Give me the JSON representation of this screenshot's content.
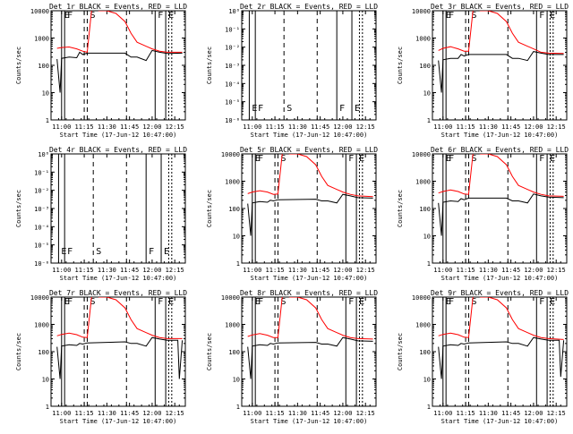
{
  "figure": {
    "shared_x_ticks": [
      "11:00",
      "11:15",
      "11:30",
      "11:45",
      "12:00",
      "12:15"
    ],
    "shared_xlabel": "Start Time (17-Jun-12 10:47:00)",
    "shared_ylabel": "Counts/sec",
    "line_colors": {
      "events": "#000000",
      "lld": "#ff0000"
    }
  },
  "chart_data": [
    {
      "type": "line",
      "title": "Det 1r BLACK = Events, RED = LLD",
      "xlabel": "Start Time (17-Jun-12 10:47:00)",
      "ylabel": "Counts/sec",
      "x_ticks": [
        "11:00",
        "11:15",
        "11:30",
        "11:45",
        "12:00",
        "12:15"
      ],
      "y_ticks": [
        "1",
        "10",
        "100",
        "1000",
        "10000"
      ],
      "yscale": "log",
      "ylim": [
        1,
        10000
      ],
      "markers": [
        {
          "label": "E",
          "x": "11:00"
        },
        {
          "label": "F",
          "x": "11:02"
        },
        {
          "label": "S",
          "x": "11:17"
        },
        {
          "label": "F",
          "x": "12:02"
        },
        {
          "label": "E",
          "x": "12:09"
        }
      ],
      "series": [
        {
          "color": "#ff0000",
          "x": [
            "10:57",
            "11:00",
            "11:05",
            "11:10",
            "11:14",
            "11:17",
            "11:20",
            "11:25",
            "11:30",
            "11:36",
            "11:42",
            "11:46",
            "11:50",
            "11:56",
            "12:00",
            "12:05",
            "12:10",
            "12:20"
          ],
          "y": [
            420,
            450,
            470,
            400,
            330,
            300,
            12000,
            10000,
            10000,
            8000,
            4000,
            1500,
            700,
            500,
            400,
            330,
            300,
            300
          ]
        },
        {
          "color": "#000000",
          "x": [
            "10:57",
            "10:59",
            "11:00",
            "11:05",
            "11:10",
            "11:12",
            "11:14",
            "11:17",
            "11:42",
            "11:46",
            "11:50",
            "11:56",
            "12:00",
            "12:05",
            "12:10",
            "12:20"
          ],
          "y": [
            170,
            10,
            180,
            200,
            190,
            300,
            250,
            280,
            280,
            200,
            200,
            150,
            350,
            300,
            270,
            280
          ]
        }
      ]
    },
    {
      "type": "line",
      "title": "Det 2r BLACK = Events, RED = LLD",
      "xlabel": "Start Time (17-Jun-12 10:47:00)",
      "ylabel": "Counts/sec",
      "x_ticks": [
        "11:00",
        "11:15",
        "11:30",
        "11:45",
        "12:00",
        "12:15"
      ],
      "y_ticks": [
        "10⁰",
        "10⁻¹",
        "10⁻²",
        "10⁻³",
        "10⁻⁴",
        "10⁻⁵",
        "10⁻⁶"
      ],
      "yscale": "log",
      "ylim": [
        1e-06,
        1
      ],
      "no_data": true,
      "markers": [
        {
          "label": "E",
          "x": "10:58"
        },
        {
          "label": "F",
          "x": "11:02"
        },
        {
          "label": "S",
          "x": "11:21"
        },
        {
          "label": "F",
          "x": "11:56"
        },
        {
          "label": "E",
          "x": "12:06"
        }
      ],
      "series": []
    },
    {
      "type": "line",
      "title": "Det 3r BLACK = Events, RED = LLD",
      "xlabel": "Start Time (17-Jun-12 10:47:00)",
      "ylabel": "Counts/sec",
      "x_ticks": [
        "11:00",
        "11:15",
        "11:30",
        "11:45",
        "12:00",
        "12:15"
      ],
      "y_ticks": [
        "1",
        "10",
        "100",
        "1000",
        "10000"
      ],
      "yscale": "log",
      "ylim": [
        1,
        10000
      ],
      "markers": [
        {
          "label": "E",
          "x": "11:00"
        },
        {
          "label": "F",
          "x": "11:02"
        },
        {
          "label": "S",
          "x": "11:17"
        },
        {
          "label": "F",
          "x": "12:02"
        },
        {
          "label": "E",
          "x": "12:09"
        }
      ],
      "series": [
        {
          "color": "#ff0000",
          "x": [
            "10:57",
            "11:00",
            "11:05",
            "11:10",
            "11:14",
            "11:17",
            "11:20",
            "11:25",
            "11:30",
            "11:36",
            "11:42",
            "11:46",
            "11:50",
            "11:56",
            "12:00",
            "12:05",
            "12:10",
            "12:20"
          ],
          "y": [
            350,
            420,
            480,
            400,
            330,
            330,
            12000,
            10000,
            10000,
            8000,
            4000,
            1500,
            700,
            500,
            400,
            300,
            280,
            270
          ]
        },
        {
          "color": "#000000",
          "x": [
            "10:57",
            "10:59",
            "11:00",
            "11:05",
            "11:10",
            "11:12",
            "11:14",
            "11:17",
            "11:42",
            "11:46",
            "11:50",
            "11:56",
            "12:00",
            "12:05",
            "12:10",
            "12:20"
          ],
          "y": [
            150,
            10,
            160,
            180,
            180,
            250,
            220,
            250,
            250,
            180,
            180,
            150,
            320,
            280,
            250,
            250
          ]
        }
      ]
    },
    {
      "type": "line",
      "title": "Det 4r BLACK = Events, RED = LLD",
      "xlabel": "Start Time (17-Jun-12 10:47:00)",
      "ylabel": "Counts/sec",
      "x_ticks": [
        "11:00",
        "11:15",
        "11:30",
        "11:45",
        "12:00",
        "12:15"
      ],
      "y_ticks": [
        "10⁰",
        "10⁻¹",
        "10⁻²",
        "10⁻³",
        "10⁻⁴",
        "10⁻⁵",
        "10⁻⁶"
      ],
      "yscale": "log",
      "ylim": [
        1e-06,
        1
      ],
      "no_data": true,
      "markers": [
        {
          "label": "E",
          "x": "10:58"
        },
        {
          "label": "F",
          "x": "11:02"
        },
        {
          "label": "S",
          "x": "11:21"
        },
        {
          "label": "F",
          "x": "11:56"
        },
        {
          "label": "E",
          "x": "12:06"
        }
      ],
      "series": []
    },
    {
      "type": "line",
      "title": "Det 5r BLACK = Events, RED = LLD",
      "xlabel": "Start Time (17-Jun-12 10:47:00)",
      "ylabel": "Counts/sec",
      "x_ticks": [
        "11:00",
        "11:15",
        "11:30",
        "11:45",
        "12:00",
        "12:15"
      ],
      "y_ticks": [
        "1",
        "10",
        "100",
        "1000",
        "10000"
      ],
      "yscale": "log",
      "ylim": [
        1,
        10000
      ],
      "markers": [
        {
          "label": "E",
          "x": "11:00"
        },
        {
          "label": "F",
          "x": "11:02"
        },
        {
          "label": "S",
          "x": "11:17"
        },
        {
          "label": "F",
          "x": "12:02"
        },
        {
          "label": "E",
          "x": "12:09"
        }
      ],
      "series": [
        {
          "color": "#ff0000",
          "x": [
            "10:57",
            "11:00",
            "11:05",
            "11:10",
            "11:14",
            "11:17",
            "11:20",
            "11:25",
            "11:30",
            "11:36",
            "11:42",
            "11:46",
            "11:50",
            "11:56",
            "12:00",
            "12:05",
            "12:10",
            "12:20"
          ],
          "y": [
            350,
            400,
            450,
            400,
            330,
            340,
            12000,
            10000,
            10000,
            8000,
            4000,
            1500,
            700,
            500,
            400,
            330,
            290,
            270
          ]
        },
        {
          "color": "#000000",
          "x": [
            "10:57",
            "10:59",
            "11:00",
            "11:05",
            "11:10",
            "11:12",
            "11:14",
            "11:17",
            "11:42",
            "11:46",
            "11:50",
            "11:56",
            "12:00",
            "12:05",
            "12:10",
            "12:20"
          ],
          "y": [
            150,
            10,
            160,
            180,
            170,
            200,
            190,
            210,
            220,
            190,
            190,
            160,
            330,
            290,
            250,
            240
          ]
        }
      ]
    },
    {
      "type": "line",
      "title": "Det 6r BLACK = Events, RED = LLD",
      "xlabel": "Start Time (17-Jun-12 10:47:00)",
      "ylabel": "Counts/sec",
      "x_ticks": [
        "11:00",
        "11:15",
        "11:30",
        "11:45",
        "12:00",
        "12:15"
      ],
      "y_ticks": [
        "1",
        "10",
        "100",
        "1000",
        "10000"
      ],
      "yscale": "log",
      "ylim": [
        1,
        10000
      ],
      "markers": [
        {
          "label": "E",
          "x": "11:00"
        },
        {
          "label": "F",
          "x": "11:02"
        },
        {
          "label": "S",
          "x": "11:17"
        },
        {
          "label": "F",
          "x": "12:02"
        },
        {
          "label": "E",
          "x": "12:09"
        }
      ],
      "series": [
        {
          "color": "#ff0000",
          "x": [
            "10:57",
            "11:00",
            "11:05",
            "11:10",
            "11:14",
            "11:17",
            "11:20",
            "11:25",
            "11:30",
            "11:36",
            "11:42",
            "11:46",
            "11:50",
            "11:56",
            "12:00",
            "12:05",
            "12:10",
            "12:20"
          ],
          "y": [
            370,
            420,
            480,
            420,
            340,
            330,
            12000,
            10000,
            10000,
            8000,
            4000,
            1500,
            700,
            500,
            400,
            330,
            290,
            280
          ]
        },
        {
          "color": "#000000",
          "x": [
            "10:57",
            "10:59",
            "11:00",
            "11:05",
            "11:10",
            "11:12",
            "11:14",
            "11:17",
            "11:42",
            "11:46",
            "11:50",
            "11:56",
            "12:00",
            "12:05",
            "12:10",
            "12:20"
          ],
          "y": [
            160,
            10,
            170,
            190,
            180,
            230,
            210,
            240,
            240,
            190,
            190,
            160,
            340,
            290,
            260,
            250
          ]
        }
      ]
    },
    {
      "type": "line",
      "title": "Det 7r BLACK = Events, RED = LLD",
      "xlabel": "Start Time (17-Jun-12 10:47:00)",
      "ylabel": "Counts/sec",
      "x_ticks": [
        "11:00",
        "11:15",
        "11:30",
        "11:45",
        "12:00",
        "12:15"
      ],
      "y_ticks": [
        "1",
        "10",
        "100",
        "1000",
        "10000"
      ],
      "yscale": "log",
      "ylim": [
        1,
        10000
      ],
      "markers": [
        {
          "label": "E",
          "x": "11:00"
        },
        {
          "label": "F",
          "x": "11:02"
        },
        {
          "label": "S",
          "x": "11:17"
        },
        {
          "label": "F",
          "x": "12:02"
        },
        {
          "label": "E",
          "x": "12:09"
        }
      ],
      "series": [
        {
          "color": "#ff0000",
          "x": [
            "10:57",
            "11:00",
            "11:05",
            "11:10",
            "11:14",
            "11:17",
            "11:20",
            "11:25",
            "11:30",
            "11:36",
            "11:42",
            "11:46",
            "11:50",
            "11:56",
            "12:00",
            "12:05",
            "12:10",
            "12:20"
          ],
          "y": [
            380,
            430,
            480,
            420,
            340,
            330,
            12000,
            10000,
            10000,
            8000,
            4000,
            1500,
            700,
            500,
            400,
            330,
            300,
            300
          ]
        },
        {
          "color": "#000000",
          "x": [
            "10:57",
            "10:59",
            "11:00",
            "11:05",
            "11:10",
            "11:12",
            "11:14",
            "11:17",
            "11:42",
            "11:46",
            "11:50",
            "11:56",
            "12:00",
            "12:05",
            "12:10",
            "12:17",
            "12:18",
            "12:20"
          ],
          "y": [
            150,
            10,
            160,
            180,
            170,
            200,
            190,
            210,
            230,
            200,
            200,
            160,
            330,
            290,
            260,
            260,
            10,
            260
          ]
        }
      ]
    },
    {
      "type": "line",
      "title": "Det 8r BLACK = Events, RED = LLD",
      "xlabel": "Start Time (17-Jun-12 10:47:00)",
      "ylabel": "Counts/sec",
      "x_ticks": [
        "11:00",
        "11:15",
        "11:30",
        "11:45",
        "12:00",
        "12:15"
      ],
      "y_ticks": [
        "1",
        "10",
        "100",
        "1000",
        "10000"
      ],
      "yscale": "log",
      "ylim": [
        1,
        10000
      ],
      "markers": [
        {
          "label": "E",
          "x": "11:00"
        },
        {
          "label": "F",
          "x": "11:02"
        },
        {
          "label": "S",
          "x": "11:17"
        },
        {
          "label": "F",
          "x": "12:02"
        },
        {
          "label": "E",
          "x": "12:09"
        }
      ],
      "series": [
        {
          "color": "#ff0000",
          "x": [
            "10:57",
            "11:00",
            "11:05",
            "11:10",
            "11:14",
            "11:17",
            "11:20",
            "11:25",
            "11:30",
            "11:36",
            "11:42",
            "11:46",
            "11:50",
            "11:56",
            "12:00",
            "12:05",
            "12:10",
            "12:20"
          ],
          "y": [
            360,
            410,
            460,
            400,
            330,
            330,
            12000,
            10000,
            10000,
            8000,
            4000,
            1500,
            700,
            500,
            400,
            330,
            300,
            290
          ]
        },
        {
          "color": "#000000",
          "x": [
            "10:57",
            "10:59",
            "11:00",
            "11:05",
            "11:10",
            "11:12",
            "11:14",
            "11:17",
            "11:42",
            "11:46",
            "11:50",
            "11:56",
            "12:00",
            "12:05",
            "12:10",
            "12:20"
          ],
          "y": [
            150,
            10,
            160,
            180,
            170,
            200,
            190,
            210,
            220,
            190,
            190,
            160,
            330,
            290,
            250,
            240
          ]
        }
      ]
    },
    {
      "type": "line",
      "title": "Det 9r BLACK = Events, RED = LLD",
      "xlabel": "Start Time (17-Jun-12 10:47:00)",
      "ylabel": "Counts/sec",
      "x_ticks": [
        "11:00",
        "11:15",
        "11:30",
        "11:45",
        "12:00",
        "12:15"
      ],
      "y_ticks": [
        "1",
        "10",
        "100",
        "1000",
        "10000"
      ],
      "yscale": "log",
      "ylim": [
        1,
        10000
      ],
      "markers": [
        {
          "label": "E",
          "x": "11:00"
        },
        {
          "label": "F",
          "x": "11:02"
        },
        {
          "label": "S",
          "x": "11:17"
        },
        {
          "label": "F",
          "x": "12:02"
        },
        {
          "label": "E",
          "x": "12:09"
        }
      ],
      "series": [
        {
          "color": "#ff0000",
          "x": [
            "10:57",
            "11:00",
            "11:05",
            "11:10",
            "11:14",
            "11:17",
            "11:20",
            "11:25",
            "11:30",
            "11:36",
            "11:42",
            "11:46",
            "11:50",
            "11:56",
            "12:00",
            "12:05",
            "12:10",
            "12:20"
          ],
          "y": [
            380,
            430,
            480,
            420,
            340,
            330,
            12000,
            10000,
            10000,
            8000,
            4000,
            1500,
            700,
            500,
            400,
            330,
            300,
            280
          ]
        },
        {
          "color": "#000000",
          "x": [
            "10:57",
            "10:59",
            "11:00",
            "11:05",
            "11:10",
            "11:12",
            "11:14",
            "11:17",
            "11:42",
            "11:46",
            "11:50",
            "11:56",
            "12:00",
            "12:05",
            "12:10",
            "12:17",
            "12:18",
            "12:20"
          ],
          "y": [
            150,
            10,
            160,
            180,
            170,
            200,
            190,
            210,
            230,
            200,
            200,
            160,
            330,
            290,
            260,
            260,
            12,
            260
          ]
        }
      ]
    }
  ]
}
